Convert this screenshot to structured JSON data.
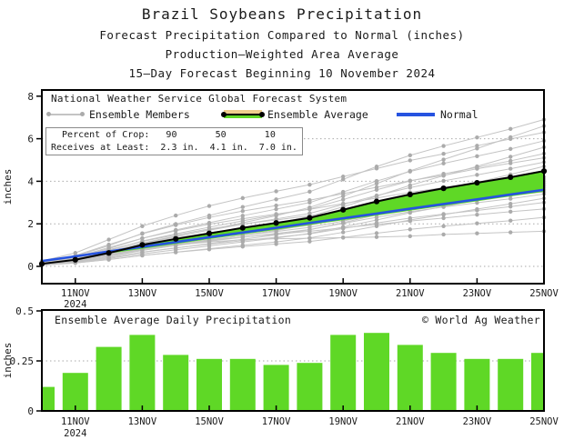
{
  "header": {
    "title": "Brazil Soybeans Precipitation",
    "subtitle_lines": [
      "Forecast Precipitation Compared to Normal (inches)",
      "Production–Weighted Area Average",
      "15–Day Forecast Beginning 10 November 2024"
    ]
  },
  "colors": {
    "bar_green": "#5fd826",
    "fill_green": "#5fd826",
    "fill_wheat": "#eecd8c",
    "normal_blue": "#2653e0",
    "member_gray": "#c4c4c4",
    "member_dot_gray": "#ababab",
    "avg_black": "#000000",
    "grid_gray": "#aaaaaa",
    "text_black": "#1a1a1a"
  },
  "top_chart": {
    "nws_line": "National Weather Service Global Forecast System",
    "legend": {
      "members_label": "Ensemble Members",
      "average_label": "Ensemble Average",
      "normal_label": "Normal"
    },
    "crop_box": {
      "line1": "  Percent of Crop:   90       50       10",
      "line2": "Receives at Least:  2.3 in.  4.1 in.  7.0 in."
    },
    "ylabel": "inches"
  },
  "bottom_chart": {
    "title": "Ensemble Average Daily Precipitation",
    "credit": "© World Ag Weather",
    "ylabel": "inches"
  },
  "chart_data": [
    {
      "type": "line",
      "title": "Forecast cumulative precipitation vs normal (inches)",
      "x_days": [
        10,
        11,
        12,
        13,
        14,
        15,
        16,
        17,
        18,
        19,
        20,
        21,
        22,
        23,
        24,
        25
      ],
      "x_tick_days": [
        11,
        13,
        15,
        17,
        19,
        21,
        23,
        25
      ],
      "x_tick_labels": [
        "11NOV",
        "13NOV",
        "15NOV",
        "17NOV",
        "19NOV",
        "21NOV",
        "23NOV",
        "25NOV"
      ],
      "x_year_label": "2024",
      "ylabel": "inches",
      "ylim": [
        0,
        8
      ],
      "yticks": [
        0,
        2,
        4,
        6,
        8
      ],
      "grid_values": [
        0,
        2,
        4,
        6
      ],
      "series": [
        {
          "name": "Normal",
          "values": [
            0.25,
            0.47,
            0.7,
            0.92,
            1.14,
            1.37,
            1.59,
            1.81,
            2.04,
            2.26,
            2.48,
            2.71,
            2.93,
            3.15,
            3.38,
            3.6
          ]
        },
        {
          "name": "Ensemble Average",
          "values": [
            0.12,
            0.31,
            0.63,
            1.01,
            1.29,
            1.55,
            1.81,
            2.04,
            2.28,
            2.66,
            3.05,
            3.38,
            3.67,
            3.93,
            4.19,
            4.48
          ]
        }
      ],
      "ensemble_members": [
        [
          0.1,
          0.25,
          0.5,
          0.8,
          1.0,
          1.15,
          1.25,
          1.3,
          1.32,
          1.35,
          1.38,
          1.42,
          1.5,
          1.55,
          1.6,
          1.65
        ],
        [
          0.06,
          0.16,
          0.32,
          0.52,
          0.66,
          0.8,
          0.93,
          1.05,
          1.17,
          1.36,
          1.56,
          1.74,
          1.89,
          2.02,
          2.15,
          2.3
        ],
        [
          0.11,
          0.27,
          0.54,
          0.81,
          1.03,
          1.22,
          1.38,
          1.51,
          1.65,
          1.81,
          1.97,
          2.13,
          2.27,
          2.43,
          2.57,
          2.7
        ],
        [
          0.08,
          0.21,
          0.42,
          0.67,
          0.87,
          1.04,
          1.21,
          1.37,
          1.53,
          1.78,
          2.04,
          2.27,
          2.46,
          2.63,
          2.81,
          3.0
        ],
        [
          0.06,
          0.16,
          0.32,
          0.51,
          0.67,
          0.83,
          0.99,
          1.15,
          1.34,
          1.6,
          1.89,
          2.18,
          2.43,
          2.69,
          2.94,
          3.2
        ],
        [
          0.09,
          0.23,
          0.48,
          0.76,
          0.98,
          1.18,
          1.37,
          1.55,
          1.73,
          2.02,
          2.31,
          2.57,
          2.79,
          2.99,
          3.18,
          3.4
        ],
        [
          0.14,
          0.35,
          0.7,
          1.05,
          1.33,
          1.58,
          1.79,
          1.96,
          2.14,
          2.35,
          2.56,
          2.77,
          2.94,
          3.15,
          3.33,
          3.5
        ],
        [
          0.1,
          0.25,
          0.5,
          0.81,
          1.04,
          1.25,
          1.45,
          1.64,
          1.83,
          2.13,
          2.45,
          2.72,
          2.95,
          3.16,
          3.37,
          3.6
        ],
        [
          0.07,
          0.19,
          0.37,
          0.59,
          0.78,
          0.96,
          1.15,
          1.33,
          1.55,
          1.85,
          2.18,
          2.52,
          2.81,
          3.11,
          3.4,
          3.7
        ],
        [
          0.1,
          0.26,
          0.53,
          0.85,
          1.1,
          1.32,
          1.54,
          1.73,
          1.93,
          2.25,
          2.58,
          2.87,
          3.12,
          3.34,
          3.56,
          3.8
        ],
        [
          0.16,
          0.39,
          0.78,
          1.17,
          1.48,
          1.76,
          1.99,
          2.18,
          2.38,
          2.61,
          2.85,
          3.08,
          3.28,
          3.51,
          3.71,
          3.9
        ],
        [
          0.11,
          0.28,
          0.56,
          0.9,
          1.16,
          1.39,
          1.62,
          1.82,
          2.04,
          2.37,
          2.72,
          3.02,
          3.28,
          3.51,
          3.74,
          4.0
        ],
        [
          0.08,
          0.21,
          0.41,
          0.66,
          0.86,
          1.07,
          1.27,
          1.48,
          1.72,
          2.05,
          2.42,
          2.79,
          3.12,
          3.44,
          3.77,
          4.1
        ],
        [
          0.11,
          0.29,
          0.59,
          0.94,
          1.21,
          1.46,
          1.7,
          1.92,
          2.14,
          2.49,
          2.86,
          3.18,
          3.44,
          3.69,
          3.93,
          4.2
        ],
        [
          0.18,
          0.44,
          0.88,
          1.32,
          1.67,
          1.98,
          2.24,
          2.46,
          2.68,
          2.95,
          3.21,
          3.48,
          3.7,
          3.96,
          4.18,
          4.4
        ],
        [
          0.12,
          0.31,
          0.63,
          1.01,
          1.3,
          1.56,
          1.82,
          2.05,
          2.29,
          2.67,
          3.06,
          3.4,
          3.69,
          3.95,
          4.21,
          4.5
        ],
        [
          0.09,
          0.24,
          0.47,
          0.75,
          0.99,
          1.22,
          1.46,
          1.69,
          1.97,
          2.35,
          2.77,
          3.2,
          3.57,
          3.95,
          4.32,
          4.7
        ],
        [
          0.13,
          0.34,
          0.69,
          1.1,
          1.42,
          1.7,
          1.98,
          2.23,
          2.49,
          2.91,
          3.33,
          3.7,
          4.02,
          4.3,
          4.59,
          4.9
        ],
        [
          0.2,
          0.51,
          1.02,
          1.53,
          1.94,
          2.3,
          2.6,
          2.86,
          3.11,
          3.42,
          3.72,
          4.03,
          4.28,
          4.59,
          4.85,
          5.1
        ],
        [
          0.14,
          0.37,
          0.74,
          1.19,
          1.53,
          1.84,
          2.14,
          2.42,
          2.7,
          3.14,
          3.6,
          4.01,
          4.35,
          4.65,
          4.96,
          5.3
        ],
        [
          0.11,
          0.28,
          0.56,
          0.9,
          1.18,
          1.46,
          1.74,
          2.02,
          2.35,
          2.8,
          3.3,
          3.81,
          4.26,
          4.7,
          5.15,
          5.6
        ],
        [
          0.16,
          0.41,
          0.83,
          1.32,
          1.71,
          2.05,
          2.38,
          2.69,
          3.0,
          3.5,
          4.01,
          4.46,
          4.84,
          5.18,
          5.52,
          5.9
        ],
        [
          0.25,
          0.63,
          1.26,
          1.89,
          2.39,
          2.84,
          3.21,
          3.53,
          3.84,
          4.22,
          4.6,
          4.98,
          5.29,
          5.67,
          5.99,
          6.3
        ],
        [
          0.13,
          0.33,
          0.66,
          1.06,
          1.39,
          1.72,
          2.05,
          2.38,
          2.77,
          3.3,
          3.89,
          4.49,
          5.02,
          5.54,
          6.07,
          6.6
        ],
        [
          0.19,
          0.48,
          0.97,
          1.55,
          1.99,
          2.39,
          2.79,
          3.15,
          3.51,
          4.09,
          4.69,
          5.22,
          5.66,
          6.06,
          6.46,
          6.9
        ]
      ]
    },
    {
      "type": "bar",
      "title": "Ensemble Average Daily Precipitation",
      "categories_days": [
        10,
        11,
        12,
        13,
        14,
        15,
        16,
        17,
        18,
        19,
        20,
        21,
        22,
        23,
        24,
        25
      ],
      "values": [
        0.12,
        0.19,
        0.32,
        0.38,
        0.28,
        0.26,
        0.26,
        0.23,
        0.24,
        0.38,
        0.39,
        0.33,
        0.29,
        0.26,
        0.26,
        0.29
      ],
      "ylabel": "inches",
      "ylim": [
        0,
        0.5
      ],
      "yticks": [
        0,
        0.25,
        0.5
      ],
      "ytick_labels": [
        "0",
        "0.25",
        "0.5"
      ],
      "grid_values": [
        0,
        0.25
      ],
      "x_tick_days": [
        11,
        13,
        15,
        17,
        19,
        21,
        23,
        25
      ],
      "x_tick_labels": [
        "11NOV",
        "13NOV",
        "15NOV",
        "17NOV",
        "19NOV",
        "21NOV",
        "23NOV",
        "25NOV"
      ],
      "x_year_label": "2024"
    }
  ]
}
